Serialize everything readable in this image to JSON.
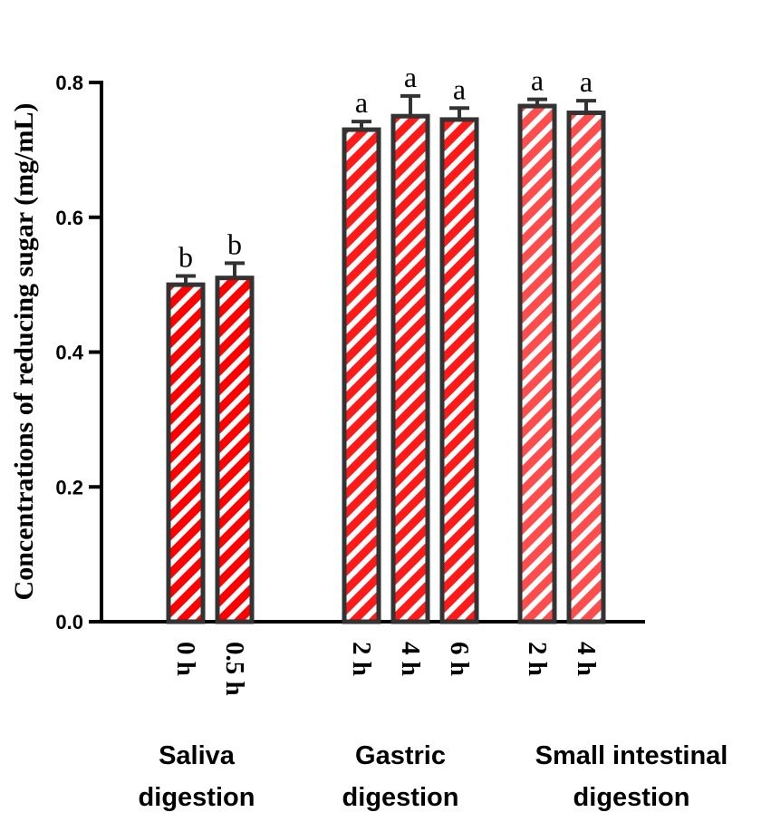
{
  "chart_data": {
    "type": "bar",
    "ylabel": "Concentrations of reducing sugar (mg/mL)",
    "ylim": [
      0,
      0.8
    ],
    "yticks": [
      "0.0",
      "0.2",
      "0.4",
      "0.6",
      "0.8"
    ],
    "grid": false,
    "groups": [
      {
        "label_lines": [
          "Saliva",
          "digestion"
        ],
        "bars": [
          {
            "category": "0 h",
            "value": 0.5,
            "error": 0.013,
            "significance": "b"
          },
          {
            "category": "0.5 h",
            "value": 0.51,
            "error": 0.022,
            "significance": "b"
          }
        ]
      },
      {
        "label_lines": [
          "Gastric",
          "digestion"
        ],
        "bars": [
          {
            "category": "2 h",
            "value": 0.73,
            "error": 0.012,
            "significance": "a"
          },
          {
            "category": "4 h",
            "value": 0.75,
            "error": 0.03,
            "significance": "a"
          },
          {
            "category": "6 h",
            "value": 0.745,
            "error": 0.017,
            "significance": "a"
          }
        ]
      },
      {
        "label_lines": [
          "Small intestinal",
          "digestion"
        ],
        "bars": [
          {
            "category": "2 h",
            "value": 0.765,
            "error": 0.01,
            "significance": "a"
          },
          {
            "category": "4 h",
            "value": 0.755,
            "error": 0.018,
            "significance": "a"
          }
        ]
      }
    ],
    "colors": {
      "saliva_fill": "#ff0000",
      "gastric_fill": "#ff1a1a",
      "intestinal_fill": "#ff4d4d",
      "stripe": "#ffffff",
      "outline": "#333333",
      "axis": "#000000"
    }
  }
}
